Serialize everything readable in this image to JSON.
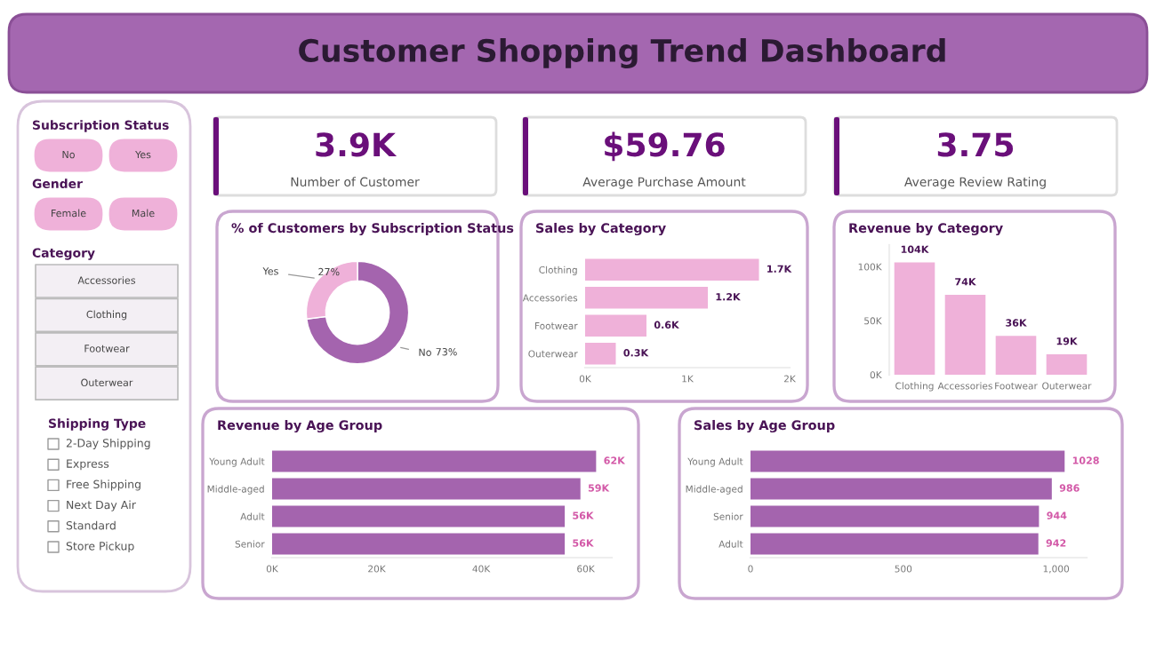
{
  "chart_data": [
    {
      "type": "other",
      "title": "Customer Shopping Trend Dashboard"
    },
    {
      "type": "other",
      "title": "Subscription Status",
      "categories": [
        "No",
        "Yes"
      ]
    },
    {
      "type": "other",
      "title": "Gender",
      "categories": [
        "Female",
        "Male"
      ]
    },
    {
      "type": "other",
      "title": "Category",
      "categories": [
        "Accessories",
        "Clothing",
        "Footwear",
        "Outerwear"
      ]
    },
    {
      "type": "other",
      "title": "Shipping Type",
      "categories": [
        "2-Day Shipping",
        "Express",
        "Free Shipping",
        "Next Day Air",
        "Standard",
        "Store Pickup"
      ]
    },
    {
      "type": "other",
      "title": "3.9K",
      "subtitle": "Number of Customer"
    },
    {
      "type": "other",
      "title": "$59.76",
      "subtitle": "Average Purchase Amount"
    },
    {
      "type": "other",
      "title": "3.75",
      "subtitle": "Average Review Rating"
    },
    {
      "type": "donut",
      "title": "% of Customers by Subscription Status",
      "categories": [
        "No",
        "Yes"
      ],
      "values": [
        73,
        27
      ],
      "colors": [
        "#a464ae",
        "#efb1d9"
      ],
      "value_labels": [
        "73%",
        "27%"
      ]
    },
    {
      "type": "bar",
      "title": "Sales by Category",
      "orientation": "horizontal",
      "categories": [
        "Clothing",
        "Accessories",
        "Footwear",
        "Outerwear"
      ],
      "values": [
        1700,
        1200,
        600,
        300
      ],
      "color": "#efb1d9",
      "value_labels": [
        "1.7K",
        "1.2K",
        "0.6K",
        "0.3K"
      ],
      "xlim": [
        0,
        2000
      ],
      "xticks": [
        {
          "value": 0,
          "label": "0K"
        },
        {
          "value": 1000,
          "label": "1K"
        },
        {
          "value": 2000,
          "label": "2K"
        }
      ]
    },
    {
      "type": "bar",
      "title": "Revenue by Category",
      "categories": [
        "Clothing",
        "Accessories",
        "Footwear",
        "Outerwear"
      ],
      "values": [
        104000,
        74000,
        36000,
        19000
      ],
      "color": "#efb1d9",
      "value_labels": [
        "104K",
        "74K",
        "36K",
        "19K"
      ],
      "ylim": [
        0,
        120000
      ],
      "yticks": [
        {
          "value": 0,
          "label": "0K"
        },
        {
          "value": 50000,
          "label": "50K"
        },
        {
          "value": 100000,
          "label": "100K"
        }
      ]
    },
    {
      "type": "bar",
      "title": "Revenue by Age Group",
      "orientation": "horizontal",
      "categories": [
        "Young Adult",
        "Middle-aged",
        "Adult",
        "Senior"
      ],
      "values": [
        62000,
        59000,
        56000,
        56000
      ],
      "color": "#a464ae",
      "value_labels": [
        "62K",
        "59K",
        "56K",
        "56K"
      ],
      "xlim": [
        0,
        65000
      ],
      "xticks": [
        {
          "value": 0,
          "label": "0K"
        },
        {
          "value": 20000,
          "label": "20K"
        },
        {
          "value": 40000,
          "label": "40K"
        },
        {
          "value": 60000,
          "label": "60K"
        }
      ]
    },
    {
      "type": "bar",
      "title": "Sales by Age Group",
      "orientation": "horizontal",
      "categories": [
        "Young Adult",
        "Middle-aged",
        "Senior",
        "Adult"
      ],
      "values": [
        1028,
        986,
        944,
        942
      ],
      "color": "#a464ae",
      "data_labels": true,
      "xlim": [
        0,
        1100
      ],
      "xticks": [
        0,
        500,
        {
          "value": 1000,
          "label": "1,000"
        }
      ]
    }
  ]
}
